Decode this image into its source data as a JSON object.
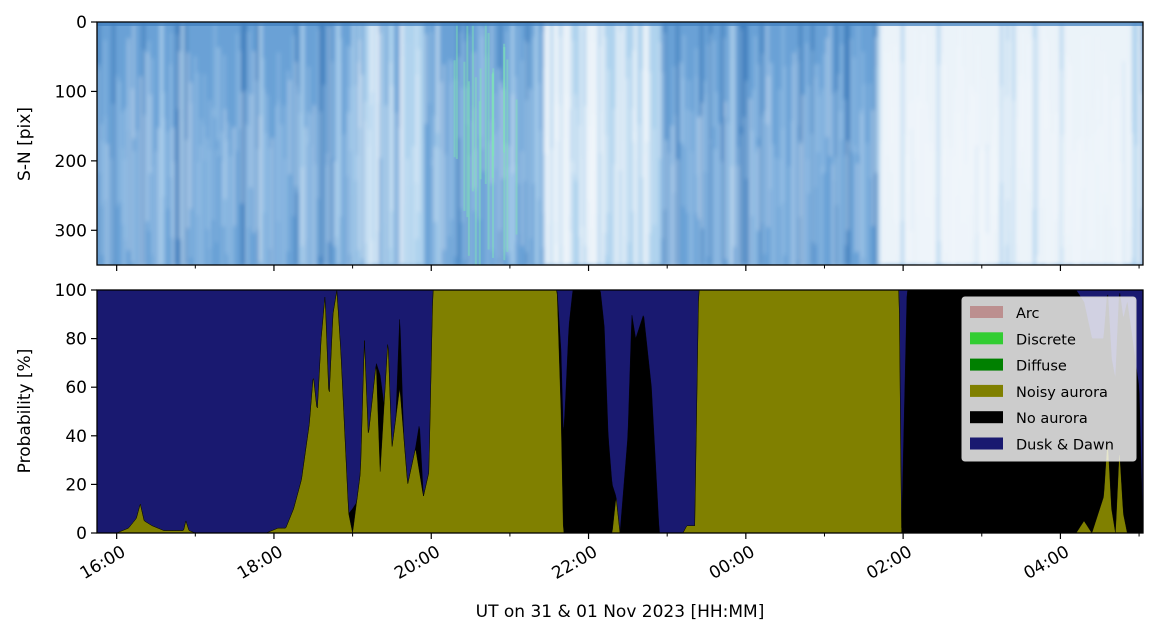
{
  "chart_data": [
    {
      "type": "heatmap",
      "description_kind": "keogram",
      "ylabel": "S-N [pix]",
      "ylim": [
        350,
        0
      ],
      "y_ticks": [
        "0",
        "100",
        "200",
        "300"
      ],
      "y_tick_values": [
        0,
        100,
        200,
        300
      ],
      "time_start_hours": 15.75,
      "time_end_hours": 29.05,
      "x_tick_hours": [
        16,
        18,
        20,
        22,
        24,
        26,
        28
      ],
      "x_minor_tick_hours": [
        17,
        19,
        21,
        23,
        25,
        27,
        29
      ],
      "colors": {
        "sky_dark": "#3e7dbd",
        "sky_mid": "#6aa2d6",
        "sky_light": "#b4d6f0",
        "sky_white": "#f4f8fc",
        "aurora_green": "#7ee8b4"
      },
      "bright_intervals": [
        {
          "start": 19.0,
          "end": 19.9,
          "level": 0.6
        },
        {
          "start": 21.4,
          "end": 22.9,
          "level": 0.85
        },
        {
          "start": 25.7,
          "end": 29.0,
          "level": 0.95
        }
      ]
    },
    {
      "type": "area",
      "stacked": true,
      "ylabel": "Probability [%]",
      "xlabel": "UT on 31 & 01 Nov 2023 [HH:MM]",
      "ylim": [
        0,
        100
      ],
      "y_ticks": [
        "0",
        "20",
        "40",
        "60",
        "80",
        "100"
      ],
      "y_tick_values": [
        0,
        20,
        40,
        60,
        80,
        100
      ],
      "x_ticks": [
        "16:00",
        "18:00",
        "20:00",
        "22:00",
        "00:00",
        "02:00",
        "04:00"
      ],
      "x_tick_hours": [
        16,
        18,
        20,
        22,
        24,
        26,
        28
      ],
      "x_minor_tick_hours": [
        17,
        19,
        21,
        23,
        25,
        27,
        29
      ],
      "xlim_hours": [
        15.75,
        29.05
      ],
      "legend": "top-right",
      "series": [
        {
          "name": "Arc",
          "color": "#bc8f8f",
          "values": []
        },
        {
          "name": "Discrete",
          "color": "#32cd32",
          "values": []
        },
        {
          "name": "Diffuse",
          "color": "#008000",
          "values": []
        },
        {
          "name": "Noisy aurora",
          "color": "#808000",
          "values": [
            [
              15.75,
              0
            ],
            [
              16.0,
              0
            ],
            [
              16.15,
              2
            ],
            [
              16.25,
              6
            ],
            [
              16.3,
              12
            ],
            [
              16.35,
              5
            ],
            [
              16.45,
              3
            ],
            [
              16.6,
              1
            ],
            [
              16.85,
              1
            ],
            [
              16.88,
              5
            ],
            [
              16.92,
              1
            ],
            [
              17.0,
              0
            ],
            [
              17.9,
              0
            ],
            [
              18.05,
              2
            ],
            [
              18.15,
              2
            ],
            [
              18.25,
              10
            ],
            [
              18.35,
              22
            ],
            [
              18.45,
              45
            ],
            [
              18.5,
              65
            ],
            [
              18.55,
              50
            ],
            [
              18.6,
              80
            ],
            [
              18.65,
              98
            ],
            [
              18.7,
              55
            ],
            [
              18.75,
              90
            ],
            [
              18.8,
              100
            ],
            [
              18.85,
              75
            ],
            [
              18.95,
              8
            ],
            [
              19.0,
              0
            ],
            [
              19.1,
              25
            ],
            [
              19.15,
              80
            ],
            [
              19.2,
              40
            ],
            [
              19.3,
              70
            ],
            [
              19.35,
              25
            ],
            [
              19.45,
              80
            ],
            [
              19.5,
              35
            ],
            [
              19.6,
              60
            ],
            [
              19.7,
              20
            ],
            [
              19.8,
              35
            ],
            [
              19.9,
              15
            ],
            [
              19.97,
              25
            ],
            [
              20.02,
              100
            ],
            [
              21.6,
              100
            ],
            [
              21.65,
              50
            ],
            [
              21.68,
              0
            ],
            [
              22.3,
              0
            ],
            [
              22.35,
              15
            ],
            [
              22.4,
              0
            ],
            [
              23.2,
              0
            ],
            [
              23.25,
              3
            ],
            [
              23.35,
              3
            ],
            [
              23.4,
              100
            ],
            [
              25.95,
              100
            ],
            [
              25.98,
              0
            ],
            [
              28.2,
              0
            ],
            [
              28.3,
              5
            ],
            [
              28.4,
              0
            ],
            [
              28.55,
              15
            ],
            [
              28.6,
              40
            ],
            [
              28.65,
              10
            ],
            [
              28.7,
              0
            ],
            [
              28.75,
              35
            ],
            [
              28.8,
              8
            ],
            [
              28.85,
              0
            ],
            [
              29.05,
              0
            ]
          ]
        },
        {
          "name": "No aurora",
          "color": "#000000",
          "values": [
            [
              15.75,
              0
            ],
            [
              18.9,
              0
            ],
            [
              18.95,
              0
            ],
            [
              19.0,
              10
            ],
            [
              19.05,
              0
            ],
            [
              19.3,
              0
            ],
            [
              19.35,
              40
            ],
            [
              19.4,
              0
            ],
            [
              19.55,
              0
            ],
            [
              19.6,
              30
            ],
            [
              19.65,
              0
            ],
            [
              19.8,
              0
            ],
            [
              19.85,
              20
            ],
            [
              19.9,
              0
            ],
            [
              21.6,
              0
            ],
            [
              21.7,
              50
            ],
            [
              21.75,
              85
            ],
            [
              21.8,
              100
            ],
            [
              22.0,
              100
            ],
            [
              22.15,
              100
            ],
            [
              22.2,
              85
            ],
            [
              22.25,
              40
            ],
            [
              22.35,
              0
            ],
            [
              22.4,
              0
            ],
            [
              22.5,
              40
            ],
            [
              22.55,
              90
            ],
            [
              22.6,
              80
            ],
            [
              22.7,
              90
            ],
            [
              22.8,
              60
            ],
            [
              22.9,
              0
            ],
            [
              25.98,
              0
            ],
            [
              26.05,
              100
            ],
            [
              28.2,
              100
            ],
            [
              28.6,
              60
            ],
            [
              28.75,
              65
            ],
            [
              28.85,
              95
            ],
            [
              29.0,
              60
            ],
            [
              29.05,
              0
            ]
          ]
        },
        {
          "name": "Dusk & Dawn",
          "color": "#191970",
          "values": "remainder"
        }
      ]
    }
  ]
}
